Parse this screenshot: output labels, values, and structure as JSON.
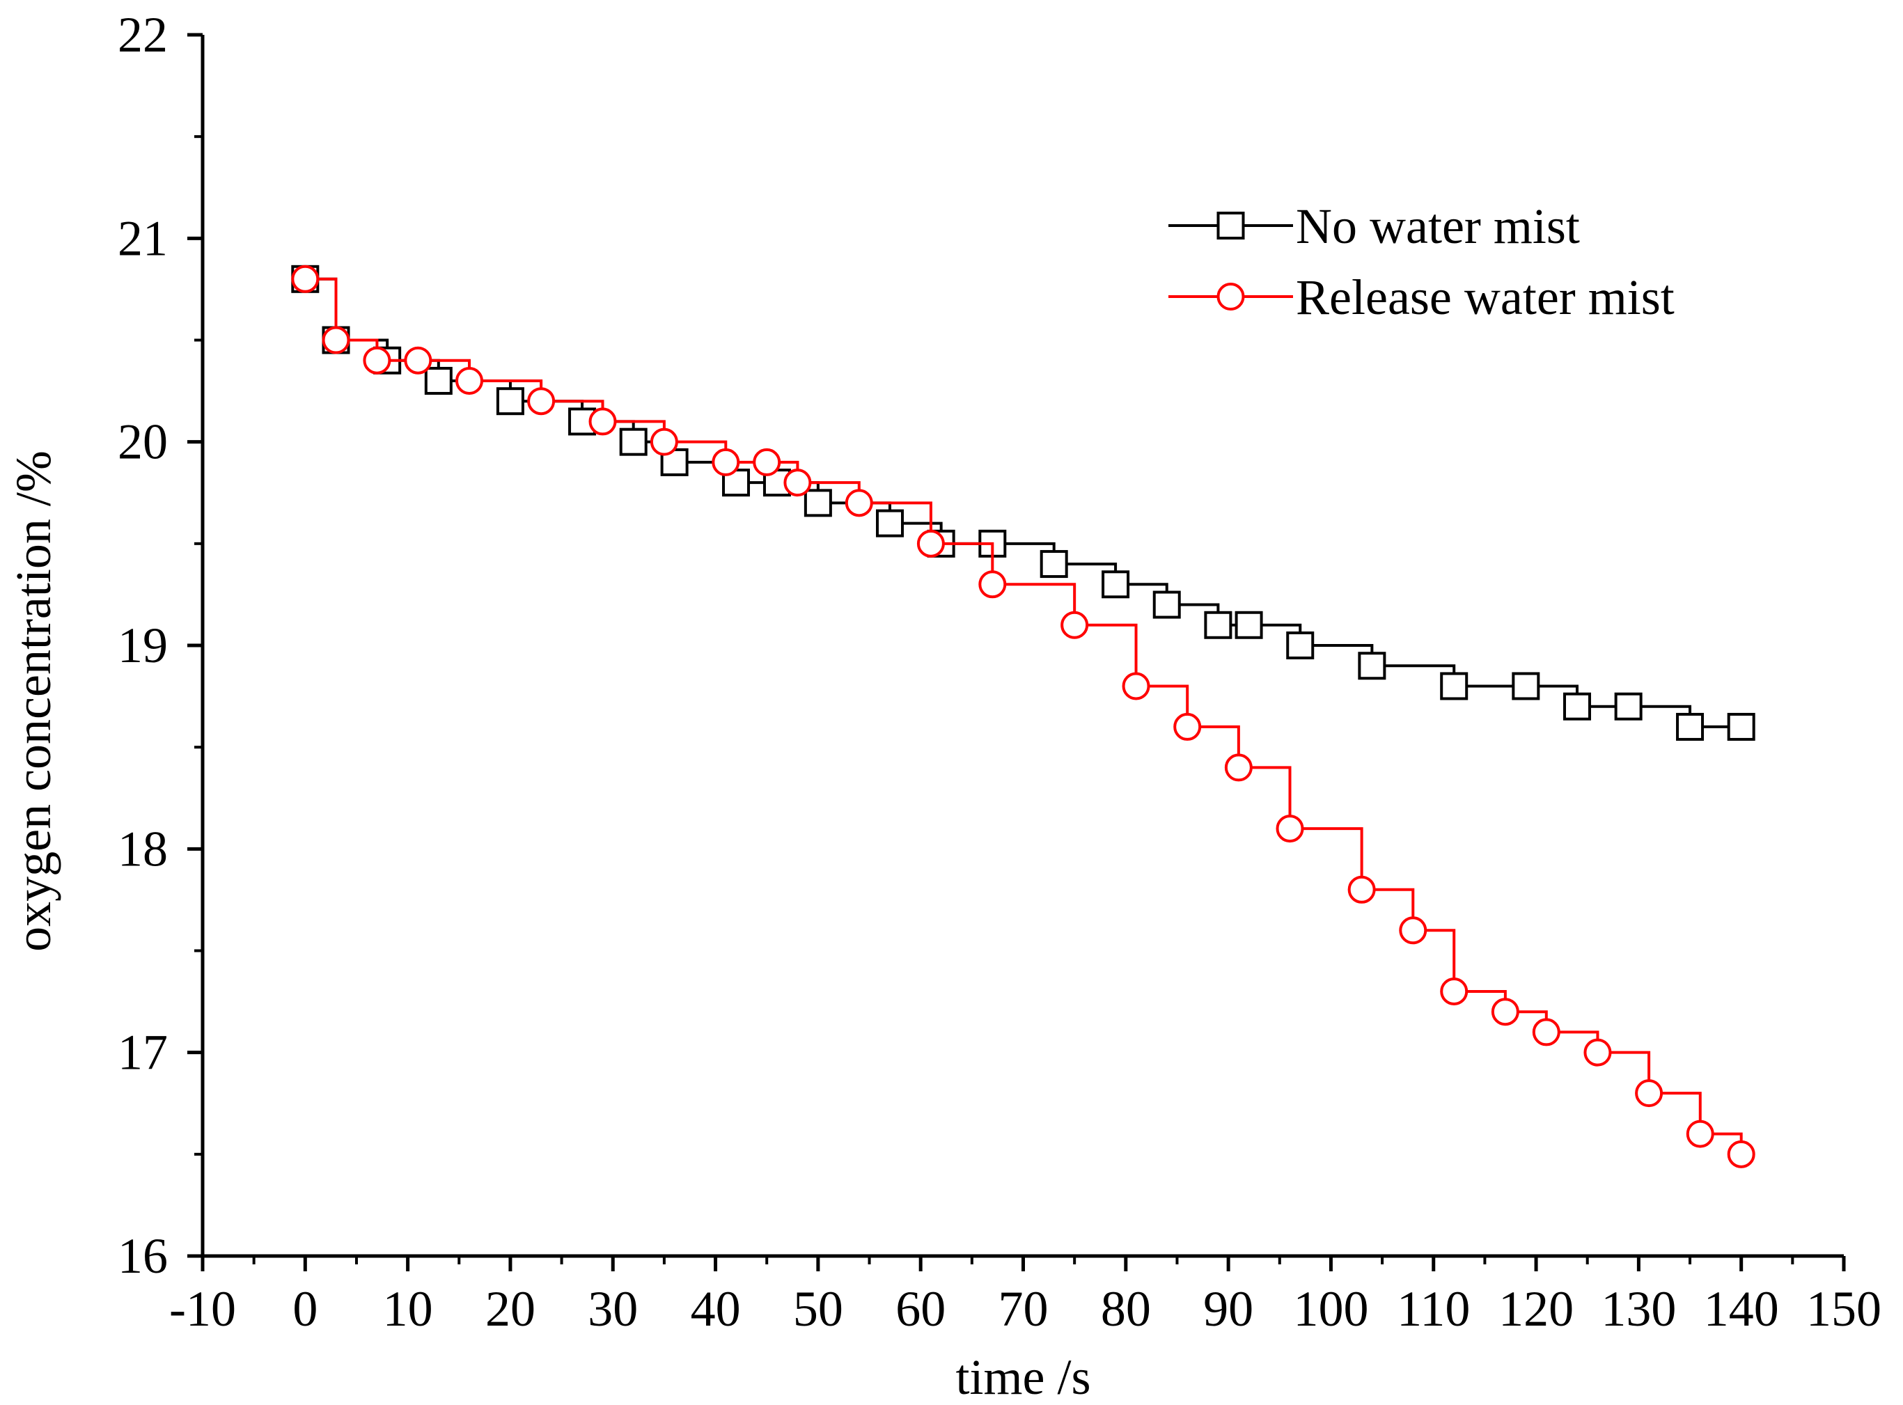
{
  "chart_data": {
    "type": "line",
    "title": "",
    "xlabel": "time /s",
    "ylabel": "oxygen concentration /%",
    "xlim": [
      -10,
      150
    ],
    "ylim": [
      16,
      22
    ],
    "xticks": [
      -10,
      0,
      10,
      20,
      30,
      40,
      50,
      60,
      70,
      80,
      90,
      100,
      110,
      120,
      130,
      140,
      150
    ],
    "yticks": [
      16,
      17,
      18,
      19,
      20,
      21,
      22
    ],
    "grid": false,
    "legend_position": "top-right",
    "line_style": "step",
    "series": [
      {
        "name": "No water mist",
        "color": "#000000",
        "marker": "square",
        "points": [
          {
            "x": 0,
            "y": 20.8
          },
          {
            "x": 3,
            "y": 20.5
          },
          {
            "x": 8,
            "y": 20.4
          },
          {
            "x": 13,
            "y": 20.3
          },
          {
            "x": 20,
            "y": 20.2
          },
          {
            "x": 27,
            "y": 20.1
          },
          {
            "x": 32,
            "y": 20.0
          },
          {
            "x": 36,
            "y": 19.9
          },
          {
            "x": 42,
            "y": 19.8
          },
          {
            "x": 46,
            "y": 19.8
          },
          {
            "x": 50,
            "y": 19.7
          },
          {
            "x": 57,
            "y": 19.6
          },
          {
            "x": 62,
            "y": 19.5
          },
          {
            "x": 67,
            "y": 19.5
          },
          {
            "x": 73,
            "y": 19.4
          },
          {
            "x": 79,
            "y": 19.3
          },
          {
            "x": 84,
            "y": 19.2
          },
          {
            "x": 89,
            "y": 19.1
          },
          {
            "x": 92,
            "y": 19.1
          },
          {
            "x": 97,
            "y": 19.0
          },
          {
            "x": 104,
            "y": 18.9
          },
          {
            "x": 112,
            "y": 18.8
          },
          {
            "x": 119,
            "y": 18.8
          },
          {
            "x": 124,
            "y": 18.7
          },
          {
            "x": 129,
            "y": 18.7
          },
          {
            "x": 135,
            "y": 18.6
          },
          {
            "x": 140,
            "y": 18.6
          }
        ]
      },
      {
        "name": "Release water mist",
        "color": "#ff0000",
        "marker": "circle",
        "points": [
          {
            "x": 0,
            "y": 20.8
          },
          {
            "x": 3,
            "y": 20.5
          },
          {
            "x": 7,
            "y": 20.4
          },
          {
            "x": 11,
            "y": 20.4
          },
          {
            "x": 16,
            "y": 20.3
          },
          {
            "x": 23,
            "y": 20.2
          },
          {
            "x": 29,
            "y": 20.1
          },
          {
            "x": 35,
            "y": 20.0
          },
          {
            "x": 41,
            "y": 19.9
          },
          {
            "x": 45,
            "y": 19.9
          },
          {
            "x": 48,
            "y": 19.8
          },
          {
            "x": 54,
            "y": 19.7
          },
          {
            "x": 61,
            "y": 19.5
          },
          {
            "x": 67,
            "y": 19.3
          },
          {
            "x": 75,
            "y": 19.1
          },
          {
            "x": 81,
            "y": 18.8
          },
          {
            "x": 86,
            "y": 18.6
          },
          {
            "x": 91,
            "y": 18.4
          },
          {
            "x": 96,
            "y": 18.1
          },
          {
            "x": 103,
            "y": 17.8
          },
          {
            "x": 108,
            "y": 17.6
          },
          {
            "x": 112,
            "y": 17.3
          },
          {
            "x": 117,
            "y": 17.2
          },
          {
            "x": 121,
            "y": 17.1
          },
          {
            "x": 126,
            "y": 17.0
          },
          {
            "x": 131,
            "y": 16.8
          },
          {
            "x": 136,
            "y": 16.6
          },
          {
            "x": 140,
            "y": 16.5
          }
        ]
      }
    ]
  }
}
